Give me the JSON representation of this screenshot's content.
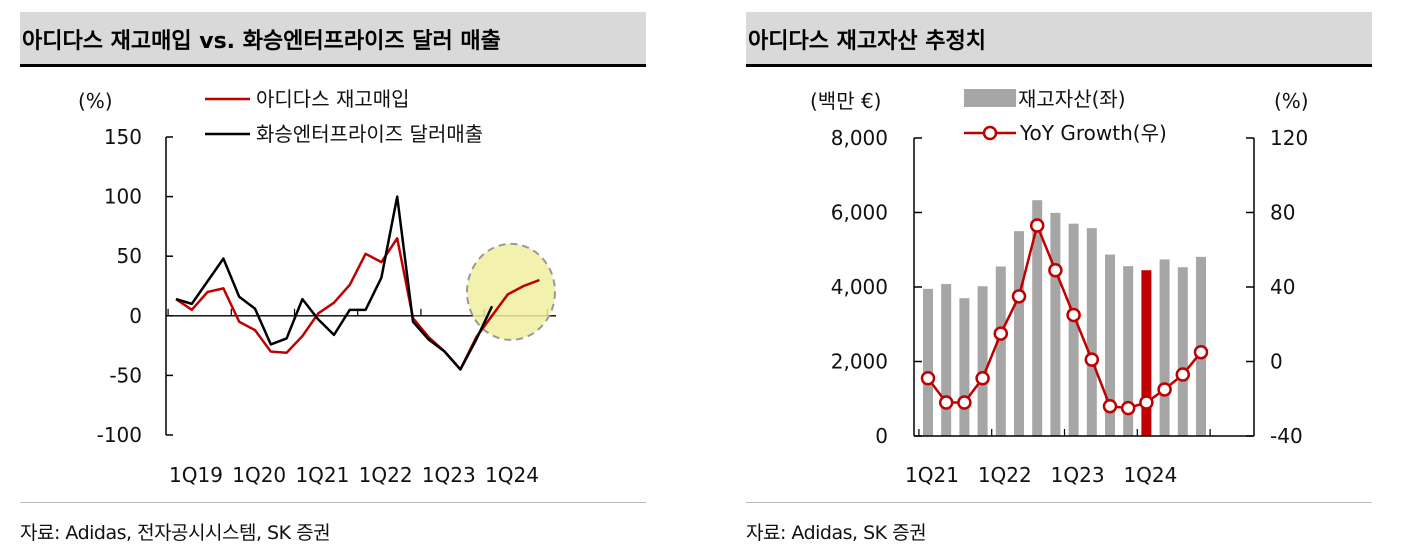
{
  "panels": [
    {
      "title": "아디다스 재고매입 vs. 화승엔터프라이즈 달러 매출",
      "source": "자료: Adidas, 전자공시시스템, SK 증권"
    },
    {
      "title": "아디다스 재고자산 추정치",
      "source": "자료: Adidas, SK 증권"
    }
  ],
  "colors": {
    "red": "#c00000",
    "black": "#000000",
    "bar_gray": "#a6a6a6",
    "highlight_fill": "#f0f0a0",
    "highlight_stroke": "#999999"
  },
  "chart_data": [
    {
      "type": "line",
      "ylabel": "(%)",
      "ylim": [
        -100,
        150
      ],
      "yticks": [
        "150",
        "100",
        "50",
        "0",
        "-50",
        "-100"
      ],
      "ytick_values": [
        150,
        100,
        50,
        0,
        -50,
        -100
      ],
      "xtick_labels": [
        "1Q19",
        "1Q20",
        "1Q21",
        "1Q22",
        "1Q23",
        "1Q24"
      ],
      "x": [
        "1Q19",
        "2Q19",
        "3Q19",
        "4Q19",
        "1Q20",
        "2Q20",
        "3Q20",
        "4Q20",
        "1Q21",
        "2Q21",
        "3Q21",
        "4Q21",
        "1Q22",
        "2Q22",
        "3Q22",
        "4Q22",
        "1Q23",
        "2Q23",
        "3Q23",
        "4Q23",
        "1Q24",
        "2Q24",
        "3Q24",
        "4Q24"
      ],
      "series": [
        {
          "name": "아디다스 재고매입",
          "color": "#c00000",
          "values": [
            14,
            5,
            20,
            23,
            -5,
            -12,
            -30,
            -31,
            -17,
            2,
            11,
            26,
            52,
            45,
            65,
            -2,
            -18,
            -30,
            -45,
            -18,
            0,
            18,
            25,
            30
          ],
          "highlight_from": 19
        },
        {
          "name": "화승엔터프라이즈 달러매출",
          "color": "#000000",
          "values": [
            14,
            10,
            29,
            48,
            16,
            6,
            -24,
            -19,
            14,
            -3,
            -16,
            5,
            5,
            32,
            100,
            -5,
            -20,
            -30,
            -45,
            -20,
            8,
            null,
            null,
            null
          ]
        }
      ],
      "annotations": [
        {
          "type": "ellipse",
          "note": "",
          "center_x": "1Q24",
          "center_y": 10,
          "color": "#f0f0a0"
        }
      ]
    },
    {
      "type": "bar+line",
      "ylabel_left": "(백만 €)",
      "ylabel_right": "(%)",
      "ylim_left": [
        0,
        8000
      ],
      "ylim_right": [
        -40,
        120
      ],
      "yticks_left": [
        "8,000",
        "6,000",
        "4,000",
        "2,000",
        "0"
      ],
      "ytick_left_values": [
        8000,
        6000,
        4000,
        2000,
        0
      ],
      "yticks_right": [
        "120",
        "80",
        "40",
        "0",
        "-40"
      ],
      "ytick_right_values": [
        120,
        80,
        40,
        0,
        -40
      ],
      "xtick_labels": [
        "1Q21",
        "1Q22",
        "1Q23",
        "1Q24"
      ],
      "x": [
        "1Q21",
        "2Q21",
        "3Q21",
        "4Q21",
        "1Q22",
        "2Q22",
        "3Q22",
        "4Q22",
        "1Q23",
        "2Q23",
        "3Q23",
        "4Q23",
        "1Q24",
        "2Q24",
        "3Q24",
        "4Q24"
      ],
      "series": [
        {
          "name": "재고자산(좌)",
          "kind": "bar",
          "color": "#a6a6a6",
          "values": [
            3950,
            4080,
            3700,
            4020,
            4550,
            5500,
            6330,
            5990,
            5700,
            5580,
            4870,
            4560,
            4450,
            4740,
            4530,
            4810
          ],
          "highlight_index": 12,
          "highlight_color": "#c00000"
        },
        {
          "name": "YoY Growth(우)",
          "kind": "line",
          "axis": "right",
          "color": "#c00000",
          "values": [
            -9,
            -22,
            -22,
            -9,
            15,
            35,
            73,
            49,
            25,
            1,
            -24,
            -25,
            -22,
            -15,
            -7,
            5
          ]
        }
      ]
    }
  ]
}
